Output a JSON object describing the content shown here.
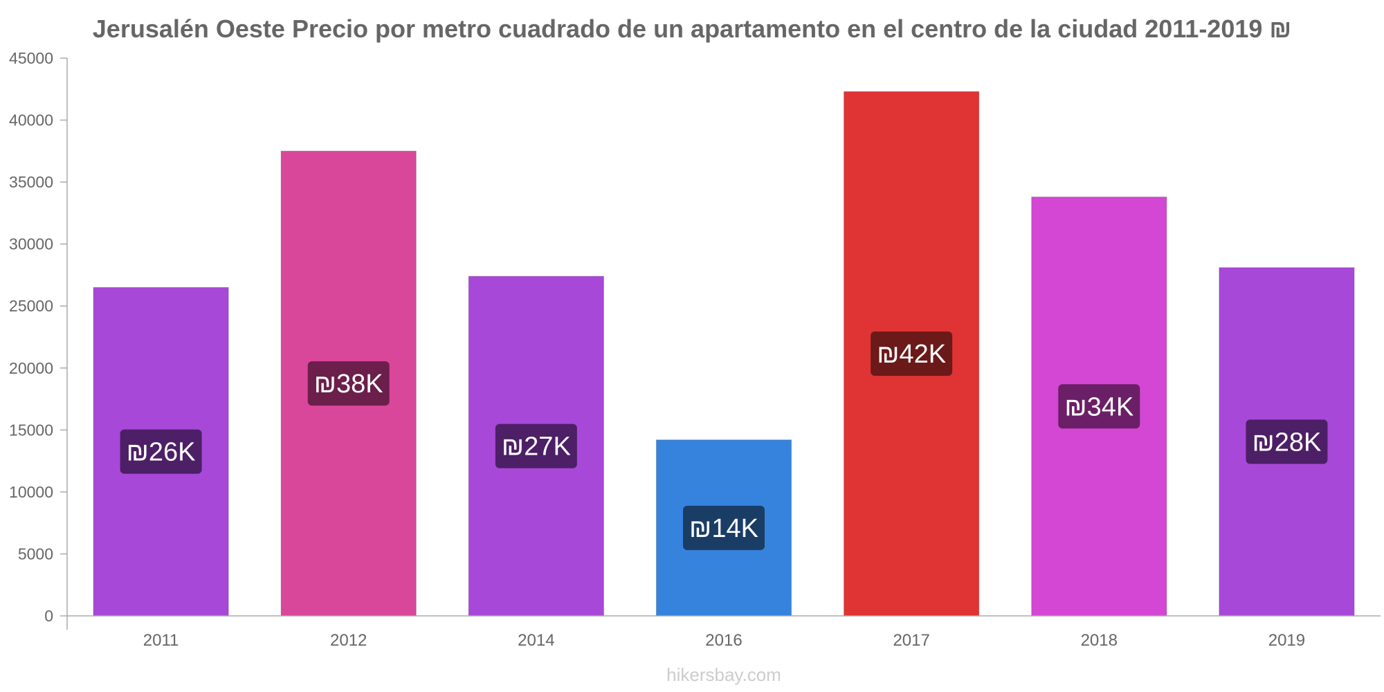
{
  "chart_data": {
    "type": "bar",
    "title": "Jerusalén Oeste Precio por metro cuadrado de un apartamento en el centro de la ciudad 2011-2019 ₪",
    "xlabel": "",
    "ylabel": "",
    "ylim": [
      0,
      45000
    ],
    "yticks": [
      0,
      5000,
      10000,
      15000,
      20000,
      25000,
      30000,
      35000,
      40000,
      45000
    ],
    "categories": [
      "2011",
      "2012",
      "2014",
      "2016",
      "2017",
      "2018",
      "2019"
    ],
    "values": [
      26500,
      37500,
      27400,
      14200,
      42300,
      33800,
      28100
    ],
    "labels": [
      "₪26K",
      "₪38K",
      "₪27K",
      "₪14K",
      "₪42K",
      "₪34K",
      "₪28K"
    ],
    "colors": [
      "#a848d9",
      "#d9479b",
      "#a848d9",
      "#3683de",
      "#e03434",
      "#d447d4",
      "#a848d9"
    ],
    "label_colors": [
      "#4d1f66",
      "#6b1f4a",
      "#4d1f66",
      "#1a3d66",
      "#6b1919",
      "#6b1f66",
      "#4d1f66"
    ],
    "grid": false,
    "legend": "none"
  },
  "watermark": "hikersbay.com"
}
